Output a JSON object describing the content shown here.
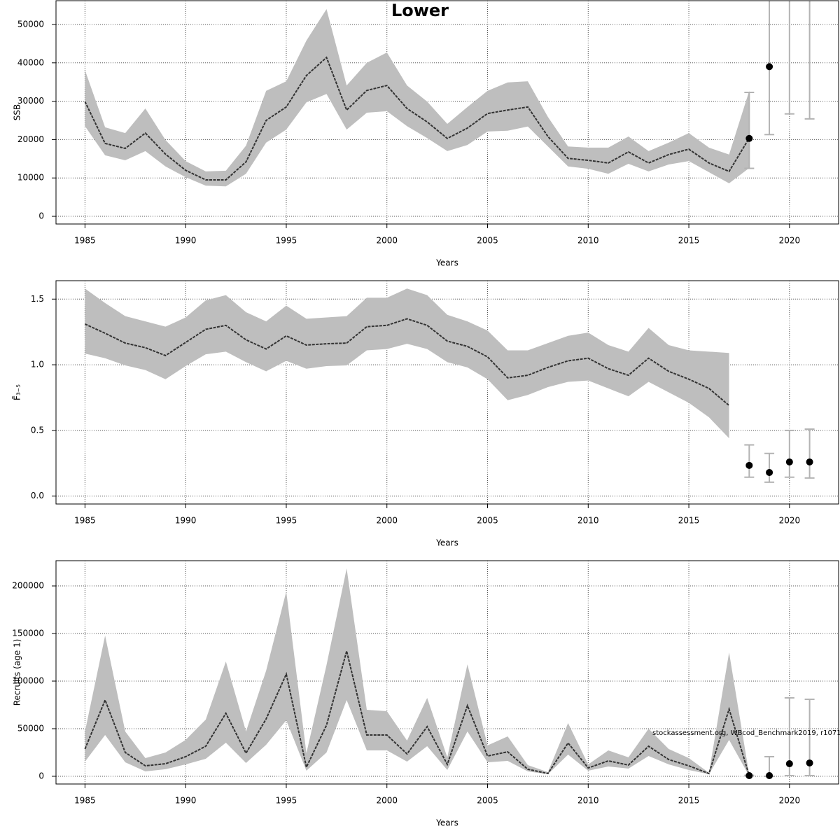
{
  "chart_data": [
    {
      "type": "line",
      "title": "Lower",
      "x_label": "Years",
      "y_label": "SSB",
      "xlim": [
        1983.56,
        2022.44
      ],
      "xticks": [
        1985,
        1990,
        1995,
        2000,
        2005,
        2010,
        2015,
        2020
      ],
      "ylim": [
        -2000,
        56200
      ],
      "yticks": [
        0,
        10000,
        20000,
        30000,
        40000,
        50000
      ],
      "grid": true,
      "band_color": "#bebebe",
      "line_color": "#333333",
      "point_color": "#000000",
      "error_color": "#b3b3b3",
      "years": [
        1985,
        1986,
        1987,
        1988,
        1989,
        1990,
        1991,
        1992,
        1993,
        1994,
        1995,
        1996,
        1997,
        1998,
        1999,
        2000,
        2001,
        2002,
        2003,
        2004,
        2005,
        2006,
        2007,
        2008,
        2009,
        2010,
        2011,
        2012,
        2013,
        2014,
        2015,
        2016,
        2017,
        2018
      ],
      "estimate": [
        29900,
        19000,
        17700,
        21700,
        16200,
        12000,
        9500,
        9500,
        14200,
        25000,
        28500,
        36700,
        41400,
        27700,
        32800,
        34100,
        28100,
        24600,
        20300,
        23000,
        26800,
        27700,
        28500,
        20800,
        15100,
        14600,
        13900,
        16800,
        13900,
        16100,
        17500,
        13900,
        11700,
        20400
      ],
      "lower": [
        23500,
        15900,
        14600,
        17000,
        13000,
        10200,
        8000,
        7800,
        11100,
        19200,
        22600,
        29700,
        31900,
        22600,
        27000,
        27400,
        23500,
        20400,
        17000,
        18600,
        22100,
        22300,
        23400,
        18200,
        13000,
        12400,
        11100,
        13700,
        11700,
        13500,
        14400,
        11500,
        8600,
        12600
      ],
      "upper": [
        38100,
        23200,
        21700,
        28100,
        19900,
        14400,
        11700,
        11900,
        18400,
        32700,
        35200,
        45800,
        54000,
        34100,
        40000,
        42700,
        34100,
        29900,
        24100,
        28500,
        32700,
        34900,
        35200,
        25900,
        18200,
        17900,
        17900,
        20800,
        17000,
        19200,
        21700,
        17900,
        16100,
        32700
      ],
      "projection": {
        "x": [
          2018,
          2019,
          2020,
          2021
        ],
        "estimate": [
          20300,
          39000,
          null,
          null
        ],
        "lower": [
          12500,
          21300,
          26700,
          25400
        ],
        "upper": [
          32300,
          null,
          null,
          null
        ]
      }
    },
    {
      "type": "line",
      "x_label": "Years",
      "y_label": "F̄₃₋₅",
      "xlim": [
        1983.56,
        2022.44
      ],
      "xticks": [
        1985,
        1990,
        1995,
        2000,
        2005,
        2010,
        2015,
        2020
      ],
      "ylim": [
        -0.06,
        1.64
      ],
      "yticks": [
        {
          "value": 0,
          "label": "0.0"
        },
        0.5,
        {
          "value": 1,
          "label": "1.0"
        },
        1.5
      ],
      "grid": true,
      "band_color": "#bebebe",
      "line_color": "#333333",
      "point_color": "#000000",
      "error_color": "#b3b3b3",
      "years": [
        1985,
        1986,
        1987,
        1988,
        1989,
        1990,
        1991,
        1992,
        1993,
        1994,
        1995,
        1996,
        1997,
        1998,
        1999,
        2000,
        2001,
        2002,
        2003,
        2004,
        2005,
        2006,
        2007,
        2008,
        2009,
        2010,
        2011,
        2012,
        2013,
        2014,
        2015,
        2016,
        2017
      ],
      "estimate": [
        1.31,
        1.24,
        1.165,
        1.13,
        1.07,
        1.17,
        1.27,
        1.3,
        1.19,
        1.12,
        1.22,
        1.15,
        1.16,
        1.165,
        1.29,
        1.3,
        1.35,
        1.3,
        1.18,
        1.14,
        1.06,
        0.9,
        0.92,
        0.98,
        1.03,
        1.05,
        0.97,
        0.92,
        1.05,
        0.95,
        0.89,
        0.82,
        0.69
      ],
      "lower": [
        1.085,
        1.05,
        0.995,
        0.96,
        0.89,
        0.99,
        1.08,
        1.1,
        1.02,
        0.95,
        1.03,
        0.97,
        0.99,
        0.995,
        1.11,
        1.12,
        1.16,
        1.12,
        1.02,
        0.98,
        0.89,
        0.73,
        0.77,
        0.83,
        0.87,
        0.88,
        0.82,
        0.76,
        0.87,
        0.79,
        0.71,
        0.6,
        0.44
      ],
      "upper": [
        1.58,
        1.47,
        1.37,
        1.33,
        1.29,
        1.36,
        1.49,
        1.53,
        1.4,
        1.33,
        1.45,
        1.35,
        1.36,
        1.37,
        1.51,
        1.51,
        1.58,
        1.53,
        1.38,
        1.33,
        1.26,
        1.11,
        1.11,
        1.165,
        1.22,
        1.245,
        1.15,
        1.1,
        1.28,
        1.15,
        1.11,
        1.1,
        1.09
      ],
      "projection": {
        "x": [
          2018,
          2019,
          2020,
          2021
        ],
        "estimate": [
          0.234,
          0.18,
          0.26,
          0.26
        ],
        "lower": [
          0.144,
          0.106,
          0.144,
          0.138
        ],
        "upper": [
          0.39,
          0.325,
          0.5,
          0.51
        ]
      }
    },
    {
      "type": "line",
      "x_label": "Years",
      "y_label": "Recruits (age 1)",
      "annotation": "stockassessment.org, WBcod_Benchmark2019, r1071",
      "xlim": [
        1983.56,
        2022.44
      ],
      "xticks": [
        1985,
        1990,
        1995,
        2000,
        2005,
        2010,
        2015,
        2020
      ],
      "ylim": [
        -8100,
        226500
      ],
      "yticks": [
        0,
        50000,
        100000,
        150000,
        200000
      ],
      "grid": true,
      "band_color": "#bebebe",
      "line_color": "#333333",
      "point_color": "#000000",
      "error_color": "#b3b3b3",
      "years": [
        1985,
        1986,
        1987,
        1988,
        1989,
        1990,
        1991,
        1992,
        1993,
        1994,
        1995,
        1996,
        1997,
        1998,
        1999,
        2000,
        2001,
        2002,
        2003,
        2004,
        2005,
        2006,
        2007,
        2008,
        2009,
        2010,
        2011,
        2012,
        2013,
        2014,
        2015,
        2016,
        2017,
        2018
      ],
      "estimate": [
        28700,
        80100,
        25000,
        11000,
        13200,
        20600,
        31600,
        66200,
        24300,
        60300,
        107400,
        9600,
        53700,
        131600,
        43400,
        43400,
        23500,
        52200,
        12500,
        74300,
        21300,
        25700,
        7400,
        2900,
        35000,
        8800,
        16200,
        11800,
        31600,
        17600,
        11000,
        2900,
        70600,
        700
      ],
      "lower": [
        15400,
        43400,
        14700,
        5100,
        7400,
        12500,
        18400,
        35300,
        14000,
        33100,
        58800,
        5900,
        25000,
        80100,
        27200,
        27200,
        15400,
        31600,
        6600,
        47100,
        14700,
        16200,
        5100,
        2200,
        22800,
        5900,
        10300,
        8100,
        21300,
        12500,
        6600,
        2200,
        38200,
        300
      ],
      "upper": [
        47100,
        147800,
        47100,
        19100,
        25000,
        38200,
        59600,
        120600,
        47100,
        111000,
        194100,
        24300,
        116900,
        218400,
        69900,
        68400,
        37500,
        82400,
        19900,
        117600,
        32400,
        41900,
        11800,
        4400,
        55900,
        12500,
        27200,
        19900,
        50000,
        28700,
        19100,
        3700,
        130100,
        1500
      ],
      "projection": {
        "x": [
          2018,
          2019,
          2020,
          2021
        ],
        "estimate": [
          700,
          700,
          13200,
          14000
        ],
        "lower": [
          400,
          0,
          700,
          700
        ],
        "upper": [
          1000,
          20600,
          82400,
          80900
        ]
      }
    }
  ]
}
